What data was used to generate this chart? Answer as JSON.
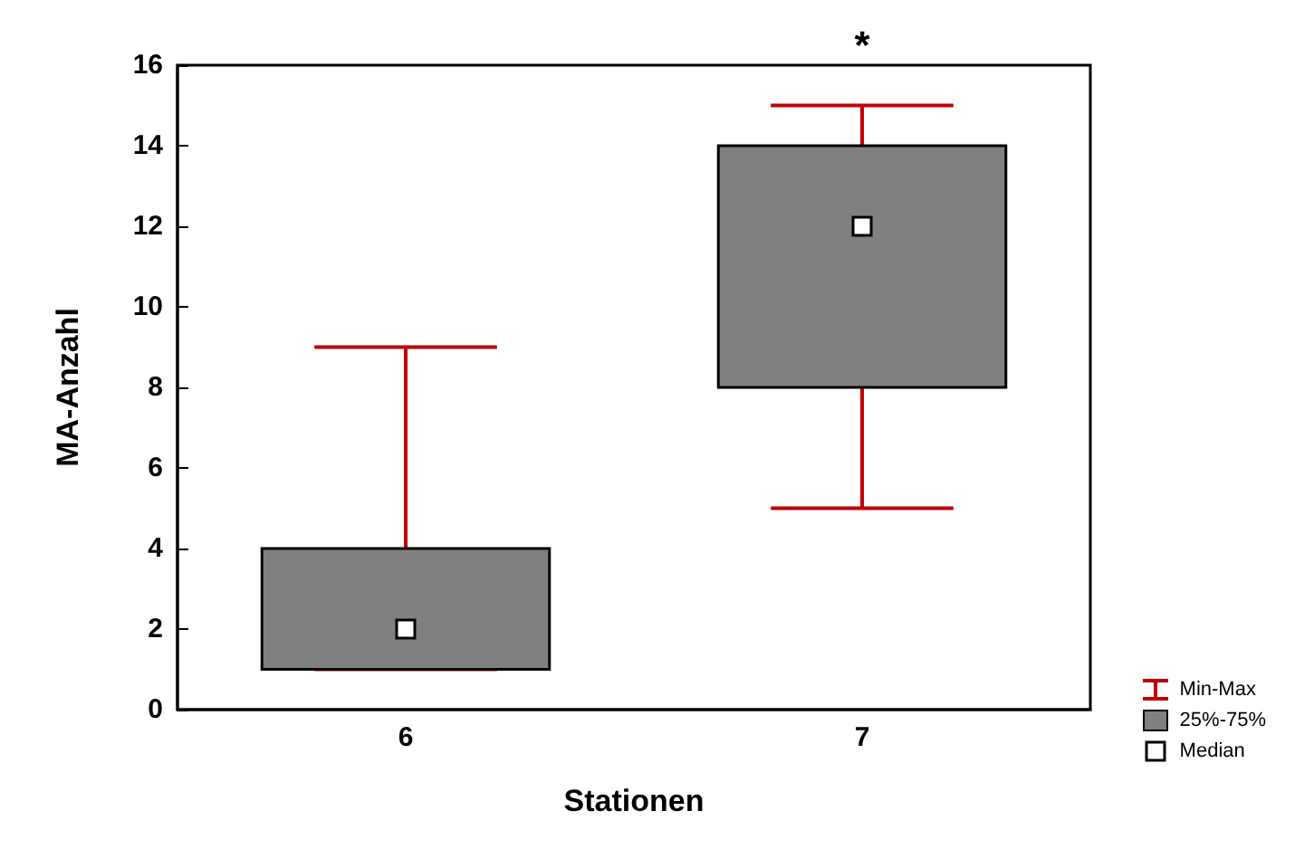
{
  "chart_data": {
    "type": "box",
    "xlabel": "Stationen",
    "ylabel": "MA-Anzahl",
    "categories": [
      "6",
      "7"
    ],
    "series": [
      {
        "name": "25%-75%",
        "color": "#808080",
        "boxes": [
          {
            "low": 1,
            "q1": 1,
            "median": 2,
            "q3": 4,
            "high": 9
          },
          {
            "low": 5,
            "q1": 8,
            "median": 12,
            "q3": 14,
            "high": 15
          }
        ]
      }
    ],
    "ylim": [
      0,
      16
    ],
    "yticks": [
      0,
      2,
      4,
      6,
      8,
      10,
      12,
      14,
      16
    ],
    "grid": false,
    "legend": "bottom right",
    "annotations": [
      "*",
      "Min-Max",
      "Median"
    ]
  }
}
